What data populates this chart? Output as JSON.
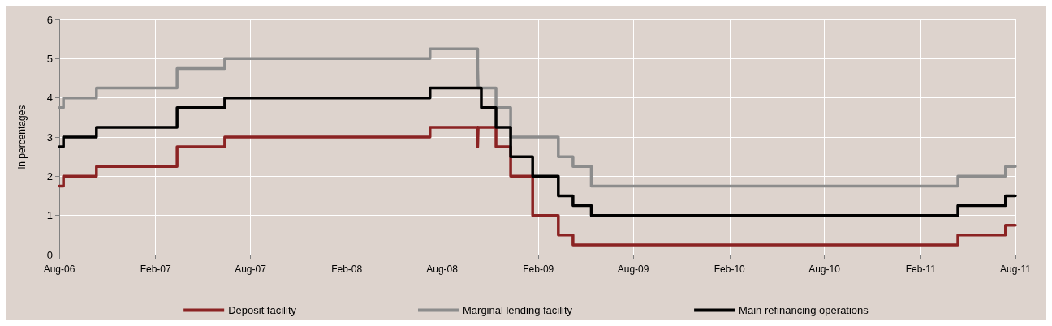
{
  "chart_data": {
    "type": "step",
    "ylabel": "in percentages",
    "xlim": [
      "2006-08-01",
      "2011-08-01"
    ],
    "xticks": [
      {
        "value": "2006-08-01",
        "label": "Aug-06"
      },
      {
        "value": "2007-02-01",
        "label": "Feb-07"
      },
      {
        "value": "2007-08-01",
        "label": "Aug-07"
      },
      {
        "value": "2008-02-01",
        "label": "Feb-08"
      },
      {
        "value": "2008-08-01",
        "label": "Aug-08"
      },
      {
        "value": "2009-02-01",
        "label": "Feb-09"
      },
      {
        "value": "2009-08-01",
        "label": "Aug-09"
      },
      {
        "value": "2010-02-01",
        "label": "Feb-10"
      },
      {
        "value": "2010-08-01",
        "label": "Aug-10"
      },
      {
        "value": "2011-02-01",
        "label": "Feb-11"
      },
      {
        "value": "2011-08-01",
        "label": "Aug-11"
      }
    ],
    "ylim": [
      0,
      6
    ],
    "yticks": [
      0,
      1,
      2,
      3,
      4,
      5,
      6
    ],
    "grid": true,
    "legend": "bottom",
    "line_style": "solid",
    "marker": "none",
    "series": [
      {
        "name": "Deposit facility",
        "color": "#8b2323",
        "x": [
          "2006-08-01",
          "2006-08-09",
          "2006-10-11",
          "2007-03-14",
          "2007-06-13",
          "2008-07-09",
          "2008-10-08",
          "2008-10-09",
          "2008-11-12",
          "2008-12-10",
          "2009-01-21",
          "2009-03-11",
          "2009-04-08",
          "2011-04-13",
          "2011-07-13",
          "2011-08-01"
        ],
        "values": [
          1.75,
          2.0,
          2.25,
          2.75,
          3.0,
          3.25,
          2.75,
          3.25,
          2.75,
          2.0,
          1.0,
          0.5,
          0.25,
          0.5,
          0.75,
          0.75
        ]
      },
      {
        "name": "Marginal lending facility",
        "color": "#8c8c8c",
        "x": [
          "2006-08-01",
          "2006-08-09",
          "2006-10-11",
          "2007-03-14",
          "2007-06-13",
          "2008-07-09",
          "2008-10-08",
          "2008-10-09",
          "2008-11-12",
          "2008-12-10",
          "2009-03-11",
          "2009-04-08",
          "2009-05-13",
          "2011-04-13",
          "2011-07-13",
          "2011-08-01"
        ],
        "values": [
          3.75,
          4.0,
          4.25,
          4.75,
          5.0,
          5.25,
          4.75,
          4.25,
          3.75,
          3.0,
          2.5,
          2.25,
          1.75,
          2.0,
          2.25,
          2.25
        ]
      },
      {
        "name": "Main refinancing operations",
        "color": "#000000",
        "x": [
          "2006-08-01",
          "2006-08-09",
          "2006-10-11",
          "2007-03-14",
          "2007-06-13",
          "2008-07-09",
          "2008-10-15",
          "2008-11-12",
          "2008-12-10",
          "2009-01-21",
          "2009-03-11",
          "2009-04-08",
          "2009-05-13",
          "2011-04-13",
          "2011-07-13",
          "2011-08-01"
        ],
        "values": [
          2.75,
          3.0,
          3.25,
          3.75,
          4.0,
          4.25,
          3.75,
          3.25,
          2.5,
          2.0,
          1.5,
          1.25,
          1.0,
          1.25,
          1.5,
          1.5
        ]
      }
    ]
  }
}
